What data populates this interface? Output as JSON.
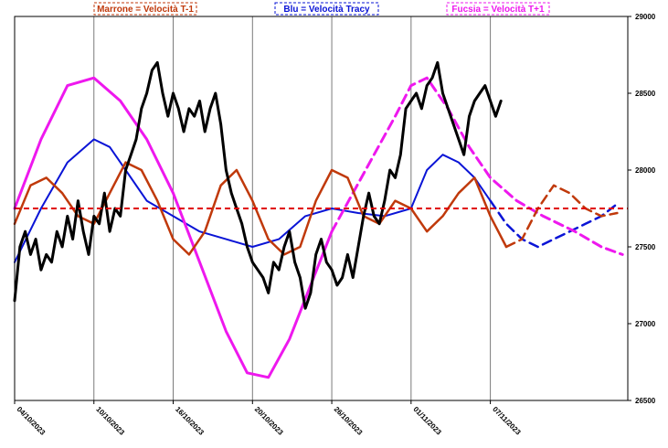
{
  "chart_data": {
    "type": "line",
    "legend": [
      {
        "label": "Marrone = Velocità T-1",
        "color": "#c0390b"
      },
      {
        "label": "Blu = Velocità Tracy",
        "color": "#0a14d6"
      },
      {
        "label": "Fucsia = Velocità T+1",
        "color": "#ee18ee"
      }
    ],
    "x_ticks": [
      "04/10/2023",
      "10/10/2023",
      "16/10/2023",
      "20/10/2023",
      "26/10/2023",
      "01/11/2023",
      "07/11/2023"
    ],
    "y_ticks": [
      "29000",
      "28500",
      "28000",
      "27500",
      "27000",
      "26500"
    ],
    "ylim": [
      26500,
      29000
    ],
    "reference_level": 27750,
    "grid": "vertical at x ticks",
    "series": [
      {
        "key": "price",
        "color": "#000000",
        "style": "solid",
        "points": [
          [
            0,
            27150
          ],
          [
            2,
            27500
          ],
          [
            4,
            27600
          ],
          [
            6,
            27450
          ],
          [
            8,
            27550
          ],
          [
            10,
            27350
          ],
          [
            12,
            27450
          ],
          [
            14,
            27400
          ],
          [
            16,
            27600
          ],
          [
            18,
            27500
          ],
          [
            20,
            27700
          ],
          [
            22,
            27550
          ],
          [
            24,
            27800
          ],
          [
            26,
            27600
          ],
          [
            28,
            27450
          ],
          [
            30,
            27700
          ],
          [
            32,
            27650
          ],
          [
            34,
            27850
          ],
          [
            36,
            27600
          ],
          [
            38,
            27750
          ],
          [
            40,
            27700
          ],
          [
            42,
            28000
          ],
          [
            44,
            28100
          ],
          [
            46,
            28200
          ],
          [
            48,
            28400
          ],
          [
            50,
            28500
          ],
          [
            52,
            28650
          ],
          [
            54,
            28700
          ],
          [
            56,
            28500
          ],
          [
            58,
            28350
          ],
          [
            60,
            28500
          ],
          [
            62,
            28400
          ],
          [
            64,
            28250
          ],
          [
            66,
            28400
          ],
          [
            68,
            28350
          ],
          [
            70,
            28450
          ],
          [
            72,
            28250
          ],
          [
            74,
            28400
          ],
          [
            76,
            28500
          ],
          [
            78,
            28300
          ],
          [
            80,
            28000
          ],
          [
            82,
            27850
          ],
          [
            84,
            27750
          ],
          [
            86,
            27650
          ],
          [
            88,
            27500
          ],
          [
            90,
            27400
          ],
          [
            92,
            27350
          ],
          [
            94,
            27300
          ],
          [
            96,
            27200
          ],
          [
            98,
            27400
          ],
          [
            100,
            27350
          ],
          [
            102,
            27500
          ],
          [
            104,
            27600
          ],
          [
            106,
            27400
          ],
          [
            108,
            27300
          ],
          [
            110,
            27100
          ],
          [
            112,
            27200
          ],
          [
            114,
            27450
          ],
          [
            116,
            27550
          ],
          [
            118,
            27400
          ],
          [
            120,
            27350
          ],
          [
            122,
            27250
          ],
          [
            124,
            27300
          ],
          [
            126,
            27450
          ],
          [
            128,
            27300
          ],
          [
            130,
            27500
          ],
          [
            132,
            27700
          ],
          [
            134,
            27850
          ],
          [
            136,
            27700
          ],
          [
            138,
            27650
          ],
          [
            140,
            27800
          ],
          [
            142,
            28000
          ],
          [
            144,
            27950
          ],
          [
            146,
            28100
          ],
          [
            148,
            28400
          ],
          [
            150,
            28450
          ],
          [
            152,
            28500
          ],
          [
            154,
            28400
          ],
          [
            156,
            28550
          ],
          [
            158,
            28600
          ],
          [
            160,
            28700
          ],
          [
            162,
            28500
          ],
          [
            164,
            28400
          ],
          [
            166,
            28300
          ],
          [
            168,
            28200
          ],
          [
            170,
            28100
          ],
          [
            172,
            28350
          ],
          [
            174,
            28450
          ],
          [
            176,
            28500
          ],
          [
            178,
            28550
          ],
          [
            180,
            28450
          ],
          [
            182,
            28350
          ],
          [
            184,
            28450
          ]
        ]
      },
      {
        "key": "t_minus_1",
        "color": "#c0390b",
        "style": "solid",
        "points": [
          [
            0,
            27650
          ],
          [
            6,
            27900
          ],
          [
            12,
            27950
          ],
          [
            18,
            27850
          ],
          [
            24,
            27700
          ],
          [
            30,
            27650
          ],
          [
            36,
            27850
          ],
          [
            42,
            28050
          ],
          [
            48,
            28000
          ],
          [
            54,
            27800
          ],
          [
            60,
            27550
          ],
          [
            66,
            27450
          ],
          [
            72,
            27600
          ],
          [
            78,
            27900
          ],
          [
            84,
            28000
          ],
          [
            90,
            27800
          ],
          [
            96,
            27550
          ],
          [
            102,
            27450
          ],
          [
            108,
            27500
          ],
          [
            114,
            27800
          ],
          [
            120,
            28000
          ],
          [
            126,
            27950
          ],
          [
            132,
            27700
          ],
          [
            138,
            27650
          ],
          [
            144,
            27800
          ],
          [
            150,
            27750
          ],
          [
            156,
            27600
          ],
          [
            162,
            27700
          ],
          [
            168,
            27850
          ],
          [
            174,
            27950
          ],
          [
            180,
            27700
          ],
          [
            186,
            27500
          ]
        ]
      },
      {
        "key": "t_minus_1_projection",
        "color": "#c0390b",
        "style": "dashed",
        "points": [
          [
            186,
            27500
          ],
          [
            192,
            27550
          ],
          [
            198,
            27750
          ],
          [
            204,
            27900
          ],
          [
            210,
            27850
          ],
          [
            216,
            27750
          ],
          [
            222,
            27700
          ],
          [
            228,
            27720
          ]
        ]
      },
      {
        "key": "tracy",
        "color": "#0a14d6",
        "style": "solid",
        "points": [
          [
            0,
            27400
          ],
          [
            10,
            27750
          ],
          [
            20,
            28050
          ],
          [
            30,
            28200
          ],
          [
            36,
            28150
          ],
          [
            42,
            28000
          ],
          [
            50,
            27800
          ],
          [
            60,
            27700
          ],
          [
            70,
            27600
          ],
          [
            80,
            27550
          ],
          [
            90,
            27500
          ],
          [
            100,
            27550
          ],
          [
            110,
            27700
          ],
          [
            120,
            27750
          ],
          [
            130,
            27720
          ],
          [
            140,
            27700
          ],
          [
            150,
            27750
          ],
          [
            156,
            28000
          ],
          [
            162,
            28100
          ],
          [
            168,
            28050
          ],
          [
            174,
            27950
          ],
          [
            180,
            27800
          ]
        ]
      },
      {
        "key": "tracy_projection",
        "color": "#0a14d6",
        "style": "dashed",
        "points": [
          [
            180,
            27800
          ],
          [
            186,
            27650
          ],
          [
            192,
            27550
          ],
          [
            198,
            27500
          ],
          [
            204,
            27550
          ],
          [
            210,
            27600
          ],
          [
            216,
            27650
          ],
          [
            222,
            27700
          ],
          [
            228,
            27780
          ]
        ]
      },
      {
        "key": "t_plus_1",
        "color": "#ee18ee",
        "style": "solid",
        "points": [
          [
            0,
            27750
          ],
          [
            10,
            28200
          ],
          [
            20,
            28550
          ],
          [
            30,
            28600
          ],
          [
            40,
            28450
          ],
          [
            50,
            28200
          ],
          [
            60,
            27850
          ],
          [
            70,
            27400
          ],
          [
            80,
            26950
          ],
          [
            88,
            26680
          ],
          [
            96,
            26650
          ],
          [
            104,
            26900
          ],
          [
            112,
            27250
          ],
          [
            120,
            27600
          ]
        ]
      },
      {
        "key": "t_plus_1_projection",
        "color": "#ee18ee",
        "style": "dashed",
        "points": [
          [
            120,
            27600
          ],
          [
            128,
            27850
          ],
          [
            136,
            28100
          ],
          [
            144,
            28350
          ],
          [
            150,
            28550
          ],
          [
            156,
            28600
          ],
          [
            164,
            28400
          ],
          [
            172,
            28150
          ],
          [
            180,
            27950
          ],
          [
            190,
            27800
          ],
          [
            200,
            27700
          ],
          [
            212,
            27600
          ],
          [
            222,
            27500
          ],
          [
            230,
            27450
          ]
        ]
      }
    ]
  }
}
